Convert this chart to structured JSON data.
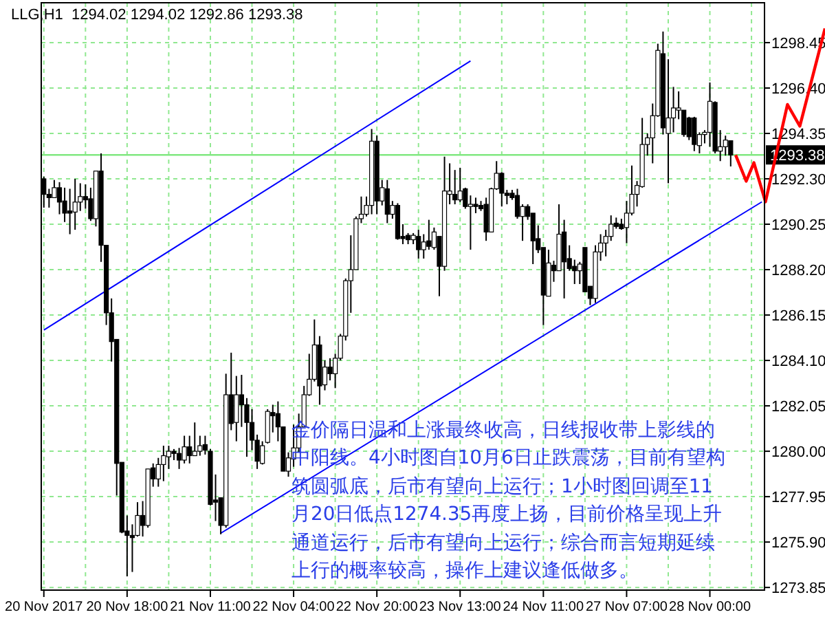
{
  "chart_data": {
    "type": "candlestick",
    "title": "LLG,H1  1294.02 1294.02 1292.86 1293.38",
    "categories": [
      "20 Nov 2017",
      null,
      null,
      null,
      null,
      null,
      null,
      null,
      null,
      null,
      null,
      null,
      null,
      null,
      null,
      null,
      "20 Nov 18:00",
      null,
      null,
      null,
      null,
      null,
      null,
      null,
      null,
      null,
      null,
      null,
      null,
      null,
      null,
      null,
      "21 Nov 11:00",
      null,
      null,
      null,
      null,
      null,
      null,
      null,
      null,
      null,
      null,
      null,
      null,
      null,
      null,
      null,
      "22 Nov 04:00",
      null,
      null,
      null,
      null,
      null,
      null,
      null,
      null,
      null,
      null,
      null,
      null,
      null,
      null,
      null,
      "22 Nov 20:00",
      null,
      null,
      null,
      null,
      null,
      null,
      null,
      null,
      null,
      null,
      null,
      null,
      null,
      null,
      null,
      "23 Nov 13:00",
      null,
      null,
      null,
      null,
      null,
      null,
      null,
      null,
      null,
      null,
      null,
      null,
      null,
      null,
      null,
      "24 Nov 11:00",
      null,
      null,
      null,
      null,
      null,
      null,
      null,
      null,
      null,
      null,
      null,
      null,
      null,
      null,
      null,
      "27 Nov 07:00",
      null,
      null,
      null,
      null,
      null,
      null,
      null,
      null,
      null,
      null,
      null,
      null,
      null,
      null,
      null,
      "28 Nov 00:00",
      null,
      null,
      null,
      null,
      null,
      null,
      null,
      null,
      null,
      null
    ],
    "ohlc": [
      [
        1292.3,
        1292.4,
        1291.0,
        1291.6
      ],
      [
        1291.6,
        1291.85,
        1291.0,
        1291.45
      ],
      [
        1291.45,
        1292.25,
        1291.45,
        1291.9
      ],
      [
        1291.9,
        1292.15,
        1290.7,
        1291.25
      ],
      [
        1291.3,
        1291.9,
        1290.35,
        1290.75
      ],
      [
        1290.85,
        1291.85,
        1289.8,
        1290.75
      ],
      [
        1290.8,
        1292.3,
        1290.0,
        1291.25
      ],
      [
        1291.25,
        1292.1,
        1290.85,
        1291.5
      ],
      [
        1291.5,
        1292.05,
        1290.95,
        1291.35
      ],
      [
        1291.4,
        1291.9,
        1290.4,
        1290.5
      ],
      [
        1290.5,
        1292.65,
        1290.15,
        1292.65
      ],
      [
        1292.65,
        1293.45,
        1288.55,
        1289.3
      ],
      [
        1289.3,
        1289.3,
        1285.7,
        1286.25
      ],
      [
        1286.25,
        1286.9,
        1284.05,
        1284.95
      ],
      [
        1285.05,
        1285.05,
        1278.0,
        1279.45
      ],
      [
        1279.5,
        1279.5,
        1276.3,
        1276.35
      ],
      [
        1276.4,
        1277.1,
        1274.35,
        1276.2
      ],
      [
        1276.2,
        1276.7,
        1274.55,
        1276.1
      ],
      [
        1276.2,
        1277.7,
        1276.15,
        1277.1
      ],
      [
        1277.1,
        1277.75,
        1276.15,
        1276.65
      ],
      [
        1276.65,
        1279.2,
        1276.55,
        1279.2
      ],
      [
        1279.25,
        1279.45,
        1278.4,
        1278.75
      ],
      [
        1278.75,
        1279.7,
        1278.4,
        1279.4
      ],
      [
        1279.4,
        1280.25,
        1278.65,
        1279.8
      ],
      [
        1279.75,
        1280.25,
        1279.2,
        1280.0
      ],
      [
        1280.0,
        1280.1,
        1279.6,
        1279.9
      ],
      [
        1279.9,
        1280.15,
        1279.2,
        1279.6
      ],
      [
        1279.6,
        1280.7,
        1279.45,
        1280.2
      ],
      [
        1280.2,
        1280.7,
        1279.45,
        1279.8
      ],
      [
        1279.8,
        1281.3,
        1279.8,
        1280.0
      ],
      [
        1280.0,
        1280.7,
        1279.8,
        1280.25
      ],
      [
        1280.3,
        1280.7,
        1279.85,
        1280.05
      ],
      [
        1280.0,
        1280.1,
        1277.55,
        1277.6
      ],
      [
        1277.8,
        1278.95,
        1276.85,
        1277.7
      ],
      [
        1277.9,
        1277.9,
        1276.25,
        1276.65
      ],
      [
        1276.65,
        1283.5,
        1276.55,
        1282.55
      ],
      [
        1282.55,
        1284.45,
        1280.95,
        1281.25
      ],
      [
        1281.3,
        1283.4,
        1280.45,
        1282.55
      ],
      [
        1282.55,
        1283.45,
        1281.1,
        1282.1
      ],
      [
        1282.1,
        1282.4,
        1279.75,
        1281.3
      ],
      [
        1281.3,
        1281.9,
        1280.05,
        1280.5
      ],
      [
        1280.5,
        1280.75,
        1279.2,
        1279.55
      ],
      [
        1279.45,
        1280.45,
        1279.4,
        1280.25
      ],
      [
        1280.4,
        1281.9,
        1280.35,
        1281.8
      ],
      [
        1281.75,
        1282.1,
        1280.85,
        1281.6
      ],
      [
        1281.7,
        1282.25,
        1280.45,
        1281.1
      ],
      [
        1281.1,
        1281.1,
        1279.1,
        1279.1
      ],
      [
        1279.1,
        1279.95,
        1278.85,
        1279.7
      ],
      [
        1279.65,
        1281.2,
        1279.3,
        1280.15
      ],
      [
        1280.15,
        1281.7,
        1279.95,
        1281.1
      ],
      [
        1281.1,
        1282.95,
        1281.1,
        1282.55
      ],
      [
        1282.55,
        1284.4,
        1282.5,
        1283.25
      ],
      [
        1283.25,
        1285.95,
        1283.15,
        1284.8
      ],
      [
        1284.8,
        1285.2,
        1282.1,
        1282.95
      ],
      [
        1283.0,
        1284.1,
        1282.75,
        1283.8
      ],
      [
        1283.8,
        1284.2,
        1283.2,
        1283.5
      ],
      [
        1283.5,
        1284.4,
        1282.85,
        1284.2
      ],
      [
        1284.2,
        1285.3,
        1284.1,
        1285.2
      ],
      [
        1285.2,
        1287.8,
        1285.0,
        1287.7
      ],
      [
        1287.7,
        1289.75,
        1286.25,
        1288.2
      ],
      [
        1288.2,
        1290.6,
        1288.2,
        1290.5
      ],
      [
        1290.5,
        1291.5,
        1290.3,
        1290.7
      ],
      [
        1290.7,
        1291.5,
        1290.6,
        1291.1
      ],
      [
        1291.1,
        1294.55,
        1290.7,
        1294.0
      ],
      [
        1294.0,
        1294.25,
        1290.7,
        1291.3
      ],
      [
        1291.3,
        1292.25,
        1291.1,
        1291.9
      ],
      [
        1291.85,
        1292.25,
        1290.3,
        1290.7
      ],
      [
        1290.7,
        1291.3,
        1290.5,
        1291.1
      ],
      [
        1291.1,
        1291.2,
        1289.55,
        1289.6
      ],
      [
        1289.7,
        1290.25,
        1289.35,
        1289.6
      ],
      [
        1289.75,
        1289.85,
        1289.35,
        1289.55
      ],
      [
        1289.55,
        1289.85,
        1289.35,
        1289.75
      ],
      [
        1289.7,
        1290.0,
        1288.7,
        1289.1
      ],
      [
        1289.1,
        1289.8,
        1288.7,
        1289.45
      ],
      [
        1289.5,
        1290.45,
        1289.1,
        1289.25
      ],
      [
        1289.2,
        1290.1,
        1289.1,
        1289.9
      ],
      [
        1289.7,
        1289.7,
        1287.0,
        1288.35
      ],
      [
        1288.35,
        1293.3,
        1288.15,
        1291.75
      ],
      [
        1291.6,
        1293.0,
        1291.15,
        1291.75
      ],
      [
        1291.6,
        1292.7,
        1291.15,
        1291.35
      ],
      [
        1291.35,
        1292.8,
        1291.25,
        1291.75
      ],
      [
        1291.85,
        1291.9,
        1290.95,
        1291.05
      ],
      [
        1291.05,
        1291.55,
        1289.1,
        1291.15
      ],
      [
        1291.15,
        1291.45,
        1290.75,
        1291.05
      ],
      [
        1291.1,
        1291.3,
        1290.85,
        1290.95
      ],
      [
        1291.15,
        1291.45,
        1289.5,
        1289.9
      ],
      [
        1289.9,
        1291.9,
        1289.9,
        1291.85
      ],
      [
        1291.85,
        1293.1,
        1291.8,
        1292.55
      ],
      [
        1292.55,
        1292.6,
        1291.05,
        1291.65
      ],
      [
        1291.65,
        1291.8,
        1291.15,
        1291.55
      ],
      [
        1291.65,
        1291.8,
        1291.35,
        1291.45
      ],
      [
        1291.55,
        1291.85,
        1290.5,
        1290.6
      ],
      [
        1290.6,
        1291.15,
        1289.5,
        1291.05
      ],
      [
        1291.05,
        1291.15,
        1290.45,
        1290.6
      ],
      [
        1290.75,
        1290.75,
        1288.45,
        1289.5
      ],
      [
        1289.6,
        1290.2,
        1288.95,
        1289.1
      ],
      [
        1289.2,
        1289.2,
        1285.7,
        1287.05
      ],
      [
        1287.0,
        1289.1,
        1287.0,
        1288.5
      ],
      [
        1288.4,
        1288.6,
        1287.65,
        1288.15
      ],
      [
        1288.15,
        1291.15,
        1288.15,
        1289.8
      ],
      [
        1289.9,
        1290.45,
        1286.9,
        1288.55
      ],
      [
        1288.7,
        1289.3,
        1288.15,
        1288.25
      ],
      [
        1288.35,
        1288.65,
        1287.55,
        1288.15
      ],
      [
        1288.15,
        1288.55,
        1287.55,
        1288.45
      ],
      [
        1289.2,
        1289.2,
        1287.2,
        1287.2
      ],
      [
        1287.45,
        1287.45,
        1286.6,
        1286.9
      ],
      [
        1286.9,
        1289.3,
        1286.7,
        1289.0
      ],
      [
        1289.0,
        1289.8,
        1288.6,
        1289.4
      ],
      [
        1289.4,
        1290.0,
        1288.8,
        1289.7
      ],
      [
        1289.7,
        1290.65,
        1289.5,
        1290.25
      ],
      [
        1290.3,
        1290.55,
        1290.05,
        1290.15
      ],
      [
        1290.25,
        1290.5,
        1290.0,
        1290.05
      ],
      [
        1290.1,
        1291.3,
        1289.4,
        1290.75
      ],
      [
        1290.75,
        1292.9,
        1290.65,
        1291.6
      ],
      [
        1291.6,
        1292.2,
        1291.05,
        1292.0
      ],
      [
        1291.95,
        1295.05,
        1291.9,
        1293.85
      ],
      [
        1293.85,
        1294.35,
        1293.35,
        1294.15
      ],
      [
        1294.15,
        1295.7,
        1293.0,
        1295.15
      ],
      [
        1295.15,
        1298.4,
        1295.1,
        1298.1
      ],
      [
        1297.95,
        1298.95,
        1294.3,
        1294.6
      ],
      [
        1294.35,
        1297.7,
        1292.1,
        1295.05
      ],
      [
        1295.05,
        1296.45,
        1294.4,
        1295.5
      ],
      [
        1295.4,
        1296.25,
        1294.99,
        1295.5
      ],
      [
        1295.4,
        1295.4,
        1294.2,
        1294.3
      ],
      [
        1295.05,
        1295.1,
        1294.05,
        1294.2
      ],
      [
        1295.05,
        1295.1,
        1293.55,
        1293.85
      ],
      [
        1293.8,
        1294.4,
        1293.45,
        1294.3
      ],
      [
        1294.3,
        1294.5,
        1293.9,
        1294.4
      ],
      [
        1294.4,
        1296.65,
        1293.75,
        1295.8
      ],
      [
        1295.75,
        1295.8,
        1293.45,
        1293.55
      ],
      [
        1293.55,
        1294.5,
        1293.1,
        1293.75
      ],
      [
        1293.75,
        1294.25,
        1293.35,
        1294.05
      ],
      [
        1294.02,
        1294.02,
        1292.86,
        1293.38
      ],
      null,
      null,
      null,
      null,
      null,
      null
    ],
    "series": [
      {
        "type": "line",
        "color": "#0000ff",
        "values": [
          1285.47,
          null,
          null,
          null,
          null,
          null,
          null,
          null,
          null,
          null,
          null,
          null,
          null,
          null,
          null,
          null,
          null,
          null,
          null,
          null,
          null,
          null,
          null,
          null,
          null,
          null,
          null,
          null,
          null,
          null,
          null,
          null,
          null,
          null,
          null,
          null,
          null,
          null,
          null,
          null,
          null,
          null,
          null,
          null,
          null,
          null,
          null,
          null,
          null,
          null,
          null,
          null,
          null,
          null,
          null,
          null,
          null,
          null,
          null,
          null,
          null,
          null,
          null,
          null,
          null,
          null,
          null,
          null,
          null,
          null,
          null,
          null,
          null,
          null,
          null,
          null,
          null,
          null,
          null,
          null,
          null,
          null,
          1297.62,
          null,
          null,
          null,
          null,
          null,
          null,
          null,
          null,
          null,
          null,
          null,
          null,
          null,
          null,
          null,
          null,
          null,
          null,
          null,
          null,
          null,
          null,
          null,
          null,
          null,
          null,
          null,
          null,
          null,
          null,
          null,
          null,
          null,
          null,
          null,
          null,
          null,
          null,
          null,
          null,
          null,
          null,
          null,
          null,
          null,
          null,
          null,
          null,
          null,
          null,
          null,
          null,
          null,
          null,
          null,
          null
        ]
      },
      {
        "type": "line",
        "color": "#0000ff",
        "values": [
          null,
          null,
          null,
          null,
          null,
          null,
          null,
          null,
          null,
          null,
          null,
          null,
          null,
          null,
          null,
          null,
          null,
          null,
          null,
          null,
          null,
          null,
          null,
          null,
          null,
          null,
          null,
          null,
          null,
          null,
          null,
          null,
          null,
          null,
          1276.3,
          null,
          null,
          null,
          null,
          null,
          null,
          null,
          null,
          null,
          null,
          null,
          null,
          null,
          null,
          null,
          null,
          null,
          null,
          null,
          null,
          null,
          null,
          null,
          null,
          null,
          null,
          null,
          null,
          null,
          null,
          null,
          null,
          null,
          null,
          null,
          null,
          null,
          null,
          null,
          null,
          null,
          null,
          null,
          null,
          null,
          null,
          null,
          null,
          null,
          null,
          null,
          null,
          null,
          null,
          null,
          null,
          null,
          null,
          null,
          null,
          null,
          null,
          null,
          null,
          null,
          null,
          null,
          null,
          null,
          null,
          null,
          null,
          null,
          null,
          null,
          null,
          null,
          null,
          null,
          null,
          null,
          null,
          null,
          null,
          null,
          null,
          null,
          null,
          null,
          null,
          null,
          null,
          null,
          null,
          null,
          null,
          null,
          null,
          null,
          null,
          null,
          null,
          null,
          1291.26
        ]
      }
    ],
    "ylim": [
      1273.73,
      1300.25
    ],
    "yticks": [
      1298.45,
      {
        "value": 1296.4,
        "label": "1296.40"
      },
      1294.35,
      {
        "value": 1292.3,
        "label": "1292.30"
      },
      1290.25,
      {
        "value": 1288.2,
        "label": "1288.20"
      },
      1286.15,
      {
        "value": 1284.1,
        "label": "1284.10"
      },
      1282.05,
      {
        "value": 1280.0,
        "label": "1280.00"
      },
      1277.95,
      {
        "value": 1275.9,
        "label": "1275.90"
      },
      1273.85
    ],
    "grid": true,
    "ref_lines": [
      {
        "axis": "y",
        "value": 1293.38,
        "label": "1293.38",
        "color": "#80e880"
      }
    ],
    "annotations": [
      "金价隔日温和上涨最终收高，日线报收带上影线的中阳线。4小时图自10月6日止跌震荡，目前有望构筑圆弧底，后市有望向上运行；1小时图回调至11月20日低点1274.35再度上扬，目前价格呈现上升通道运行，后市有望向上运行；综合而言短期延续上行的概率较高，操作上建议逢低做多。"
    ]
  }
}
